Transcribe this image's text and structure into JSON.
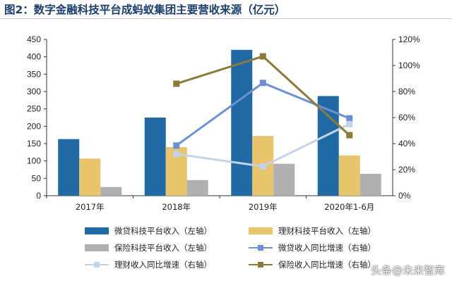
{
  "title": "图2：数字金融科技平台成蚂蚁集团主要营收来源（亿元）",
  "watermark": "头条@未来智库",
  "colors": {
    "micro_loan": "#1f6aa5",
    "wealth": "#e8c46a",
    "insurance": "#b0b0b0",
    "micro_loan_growth": "#6b8fd6",
    "wealth_growth": "#c3d4ea",
    "insurance_growth": "#8c7a3a"
  },
  "chart_data": {
    "type": "bar+line",
    "categories": [
      "2017年",
      "2018年",
      "2019年",
      "2020年1-6月"
    ],
    "left_axis": {
      "range": [
        0,
        450
      ],
      "ticks": [
        "0",
        "50",
        "100",
        "150",
        "200",
        "250",
        "300",
        "350",
        "400",
        "450"
      ]
    },
    "right_axis": {
      "range": [
        0,
        120
      ],
      "ticks": [
        "0%",
        "20%",
        "40%",
        "60%",
        "80%",
        "100%",
        "120%"
      ]
    },
    "bar_series": [
      {
        "name": "微贷科技平台收入（左轴）",
        "values": [
          163,
          225,
          420,
          287
        ]
      },
      {
        "name": "理财科技平台收入（左轴）",
        "values": [
          107,
          140,
          172,
          116
        ]
      },
      {
        "name": "保险科技平台收入（左轴）",
        "values": [
          25,
          45,
          92,
          63
        ]
      }
    ],
    "line_series": [
      {
        "name": "微贷收入同比增速（右轴）",
        "values": [
          null,
          38.5,
          86.6,
          59.4
        ]
      },
      {
        "name": "理财收入同比增速（右轴）",
        "values": [
          null,
          32,
          22.5,
          55
        ]
      },
      {
        "name": "保险收入同比增速（右轴）",
        "values": [
          null,
          86,
          107,
          46.5
        ]
      }
    ]
  },
  "legend": [
    {
      "label": "微贷科技平台收入（左轴）",
      "kind": "bar",
      "color": "#1f6aa5"
    },
    {
      "label": "理财科技平台收入（左轴）",
      "kind": "bar",
      "color": "#e8c46a"
    },
    {
      "label": "保险科技平台收入（左轴）",
      "kind": "bar",
      "color": "#b0b0b0"
    },
    {
      "label": "微贷收入同比增速（右轴）",
      "kind": "line",
      "color": "#6b8fd6"
    },
    {
      "label": "理财收入同比增速（右轴）",
      "kind": "line",
      "color": "#c3d4ea"
    },
    {
      "label": "保险收入同比增速（右轴）",
      "kind": "line",
      "color": "#8c7a3a"
    }
  ]
}
